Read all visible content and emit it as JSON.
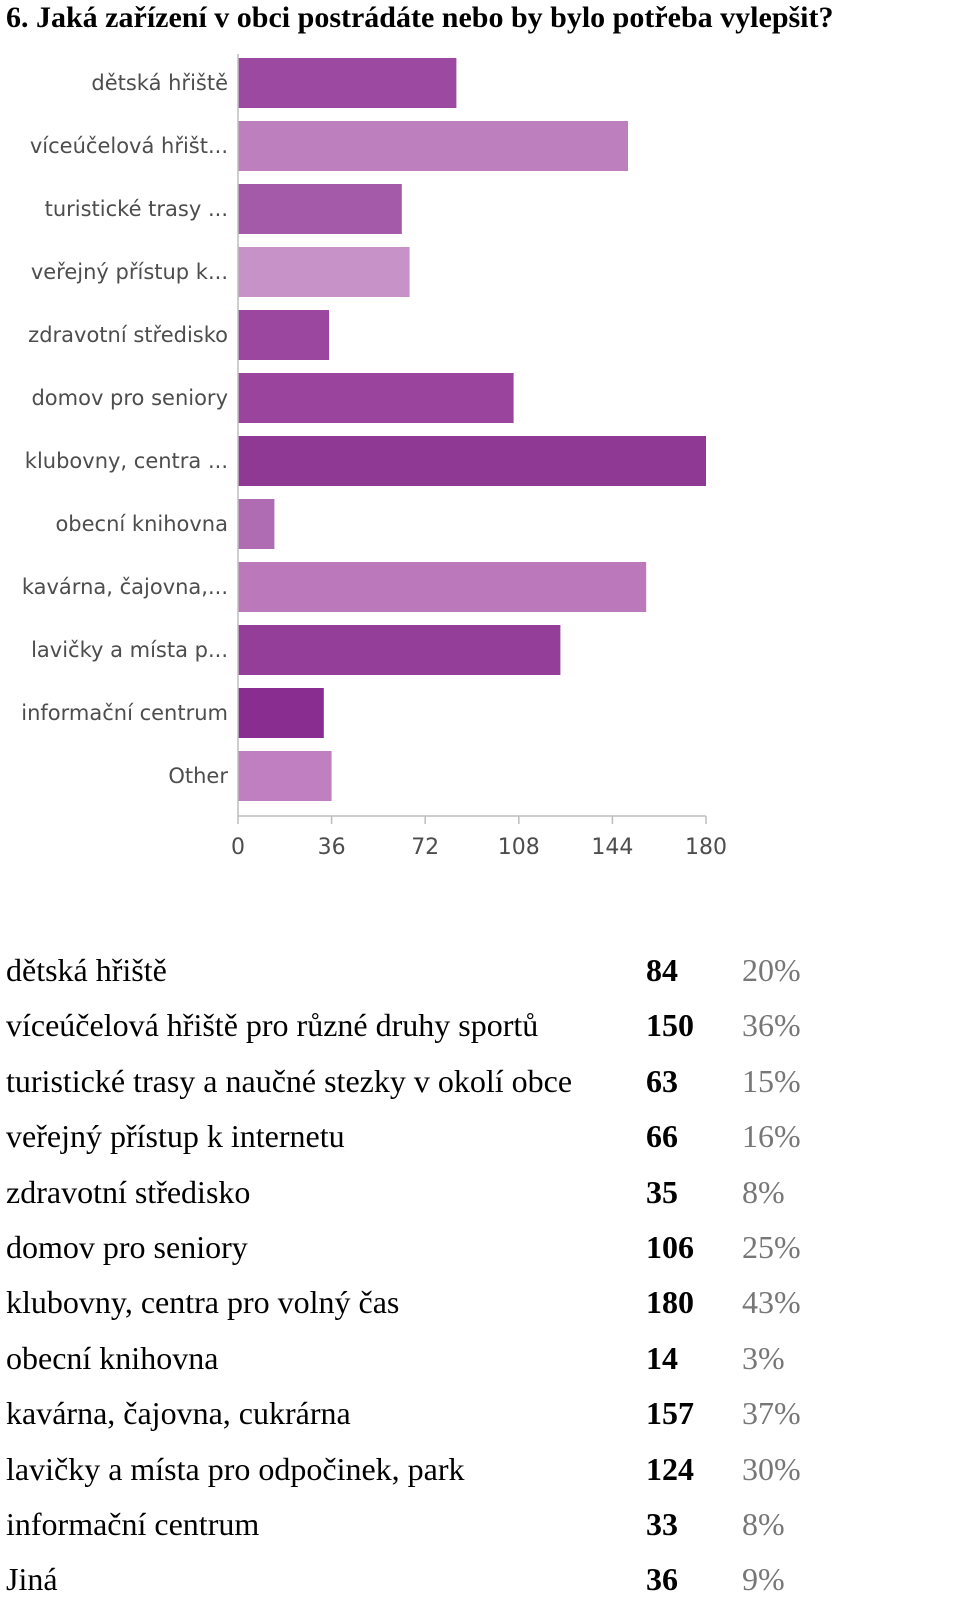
{
  "title": "6. Jaká zařízení v obci postrádáte nebo by bylo potřeba vylepšit?",
  "chart_data": {
    "type": "bar",
    "orientation": "horizontal",
    "categories": [
      "dětská hřiště",
      "víceúčelová hřišt...",
      "turistické trasy ...",
      "veřejný přístup k...",
      "zdravotní středisko",
      "domov pro seniory",
      "klubovny, centra ...",
      "obecní knihovna",
      "kavárna, čajovna,...",
      "lavičky a místa p...",
      "informační centrum",
      "Other"
    ],
    "values": [
      84,
      150,
      63,
      66,
      35,
      106,
      180,
      14,
      157,
      124,
      33,
      36
    ],
    "xlim": [
      0,
      180
    ],
    "xticks": [
      "0",
      "36",
      "72",
      "108",
      "144",
      "180"
    ],
    "colors": [
      "#9c4aa1",
      "#be7fbe",
      "#a45aa8",
      "#c792c7",
      "#9b469f",
      "#9a449d",
      "#8f3894",
      "#b06cb3",
      "#bb78bb",
      "#953e99",
      "#8a2d90",
      "#c07fc1"
    ],
    "grid": false,
    "legend": "none"
  },
  "table": {
    "rows": [
      {
        "label": "dětská hřiště",
        "count": "84",
        "percent": "20%"
      },
      {
        "label": "víceúčelová hřiště pro různé druhy sportů",
        "count": "150",
        "percent": "36%"
      },
      {
        "label": "turistické trasy a naučné stezky v okolí obce",
        "count": "63",
        "percent": "15%"
      },
      {
        "label": "veřejný přístup k internetu",
        "count": "66",
        "percent": "16%"
      },
      {
        "label": "zdravotní středisko",
        "count": "35",
        "percent": "8%"
      },
      {
        "label": "domov pro seniory",
        "count": "106",
        "percent": "25%"
      },
      {
        "label": "klubovny, centra pro volný čas",
        "count": "180",
        "percent": "43%"
      },
      {
        "label": "obecní knihovna",
        "count": "14",
        "percent": "3%"
      },
      {
        "label": "kavárna, čajovna, cukrárna",
        "count": "157",
        "percent": "37%"
      },
      {
        "label": "lavičky a místa pro odpočinek, park",
        "count": "124",
        "percent": "30%"
      },
      {
        "label": "informační centrum",
        "count": "33",
        "percent": "8%"
      },
      {
        "label": "Jiná",
        "count": "36",
        "percent": "9%"
      }
    ]
  }
}
